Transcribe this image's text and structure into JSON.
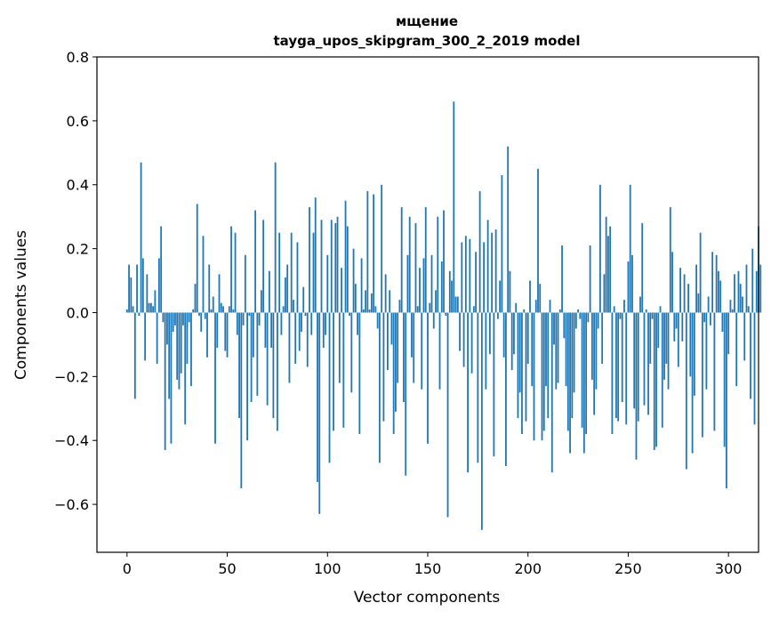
{
  "chart_data": {
    "type": "bar",
    "title_lines": [
      "мщение",
      "tayga_upos_skipgram_300_2_2019 model"
    ],
    "xlabel": "Vector components",
    "ylabel": "Components values",
    "xlim": [
      -15,
      315
    ],
    "ylim": [
      -0.75,
      0.8
    ],
    "xticks": [
      0,
      50,
      100,
      150,
      200,
      250,
      300
    ],
    "yticks": [
      -0.6,
      -0.4,
      -0.2,
      0.0,
      0.2,
      0.4,
      0.6,
      0.8
    ],
    "ytick_labels": [
      "−0.6",
      "−0.4",
      "−0.2",
      "0.0",
      "0.2",
      "0.4",
      "0.6",
      "0.8"
    ],
    "bar_color": "#1f77b4",
    "grid": false,
    "values": [
      0.01,
      0.15,
      0.11,
      0.02,
      -0.27,
      0.15,
      -0.01,
      0.47,
      0.17,
      -0.15,
      0.12,
      0.03,
      0.03,
      0.02,
      0.07,
      -0.16,
      0.17,
      0.27,
      -0.03,
      -0.43,
      -0.1,
      -0.27,
      -0.41,
      -0.06,
      -0.04,
      -0.21,
      -0.24,
      -0.19,
      -0.04,
      -0.35,
      -0.16,
      -0.03,
      -0.23,
      0.01,
      0.09,
      0.34,
      -0.01,
      -0.06,
      0.24,
      -0.02,
      -0.14,
      0.15,
      0.01,
      0.05,
      -0.41,
      -0.11,
      0.12,
      0.03,
      0.02,
      -0.12,
      -0.14,
      0.02,
      0.27,
      0.01,
      0.25,
      -0.07,
      -0.33,
      -0.55,
      -0.04,
      0.18,
      -0.4,
      -0.01,
      -0.28,
      -0.14,
      0.32,
      -0.26,
      -0.04,
      0.07,
      0.29,
      -0.11,
      -0.29,
      0.13,
      -0.11,
      -0.33,
      0.47,
      -0.37,
      0.25,
      -0.07,
      0.02,
      0.11,
      0.15,
      -0.22,
      0.25,
      0.04,
      -0.16,
      0.22,
      -0.12,
      -0.06,
      0.08,
      -0.01,
      -0.17,
      0.33,
      -0.07,
      0.25,
      0.36,
      -0.53,
      -0.63,
      0.29,
      -0.11,
      -0.07,
      0.18,
      -0.47,
      0.29,
      -0.37,
      0.28,
      0.3,
      -0.22,
      0.14,
      -0.36,
      0.35,
      0.27,
      -0.01,
      -0.25,
      0.2,
      0.09,
      -0.07,
      -0.38,
      0.17,
      0.01,
      0.07,
      0.38,
      0.01,
      0.06,
      0.37,
      0.02,
      -0.05,
      -0.47,
      0.4,
      -0.34,
      0.12,
      -0.18,
      0.07,
      -0.1,
      -0.38,
      -0.31,
      -0.22,
      0.04,
      0.33,
      -0.28,
      -0.51,
      0.18,
      0.3,
      -0.14,
      -0.22,
      0.28,
      0.02,
      0.14,
      -0.24,
      0.17,
      0.33,
      -0.41,
      0.03,
      0.18,
      -0.05,
      0.07,
      0.3,
      -0.24,
      0.16,
      0.32,
      -0.01,
      -0.64,
      0.13,
      0.1,
      0.66,
      0.05,
      0.05,
      -0.12,
      0.22,
      -0.17,
      0.24,
      -0.5,
      0.23,
      -0.19,
      0.02,
      0.19,
      -0.47,
      0.38,
      -0.68,
      0.22,
      -0.24,
      0.29,
      -0.13,
      0.25,
      -0.45,
      0.26,
      -0.02,
      0.1,
      0.43,
      -0.14,
      -0.48,
      0.52,
      0.13,
      -0.18,
      -0.13,
      0.03,
      -0.33,
      -0.25,
      -0.38,
      0.01,
      -0.34,
      -0.16,
      0.1,
      -0.23,
      -0.4,
      0.04,
      0.45,
      0.09,
      -0.4,
      -0.37,
      -0.23,
      -0.33,
      0.04,
      -0.5,
      -0.1,
      -0.24,
      -0.22,
      0.01,
      0.21,
      -0.08,
      -0.23,
      -0.37,
      -0.44,
      -0.33,
      -0.25,
      -0.05,
      0.01,
      -0.02,
      -0.36,
      -0.44,
      -0.38,
      -0.03,
      0.21,
      -0.21,
      -0.32,
      -0.24,
      -0.05,
      0.4,
      -0.16,
      0.12,
      0.3,
      0.24,
      0.27,
      -0.38,
      0.02,
      -0.33,
      -0.34,
      -0.02,
      -0.28,
      0.04,
      -0.35,
      0.16,
      0.4,
      0.18,
      -0.3,
      -0.46,
      -0.34,
      0.05,
      0.28,
      -0.29,
      0.01,
      -0.32,
      -0.16,
      -0.02,
      -0.43,
      -0.42,
      -0.11,
      0.02,
      -0.36,
      -0.21,
      -0.16,
      -0.24,
      0.33,
      0.19,
      -0.09,
      -0.05,
      -0.17,
      0.14,
      -0.09,
      0.12,
      -0.49,
      0.09,
      -0.2,
      -0.44,
      -0.26,
      0.15,
      0.06,
      0.25,
      -0.39,
      -0.03,
      -0.24,
      0.05,
      -0.04,
      0.19,
      -0.37,
      0.18,
      0.13,
      0.1,
      -0.06,
      -0.42,
      -0.55,
      -0.13,
      0.04,
      0.01,
      0.12,
      -0.23,
      0.13,
      0.09,
      0.05,
      -0.15,
      0.15,
      0.02,
      -0.27,
      0.2,
      -0.35,
      0.13,
      0.27,
      0.15
    ]
  }
}
